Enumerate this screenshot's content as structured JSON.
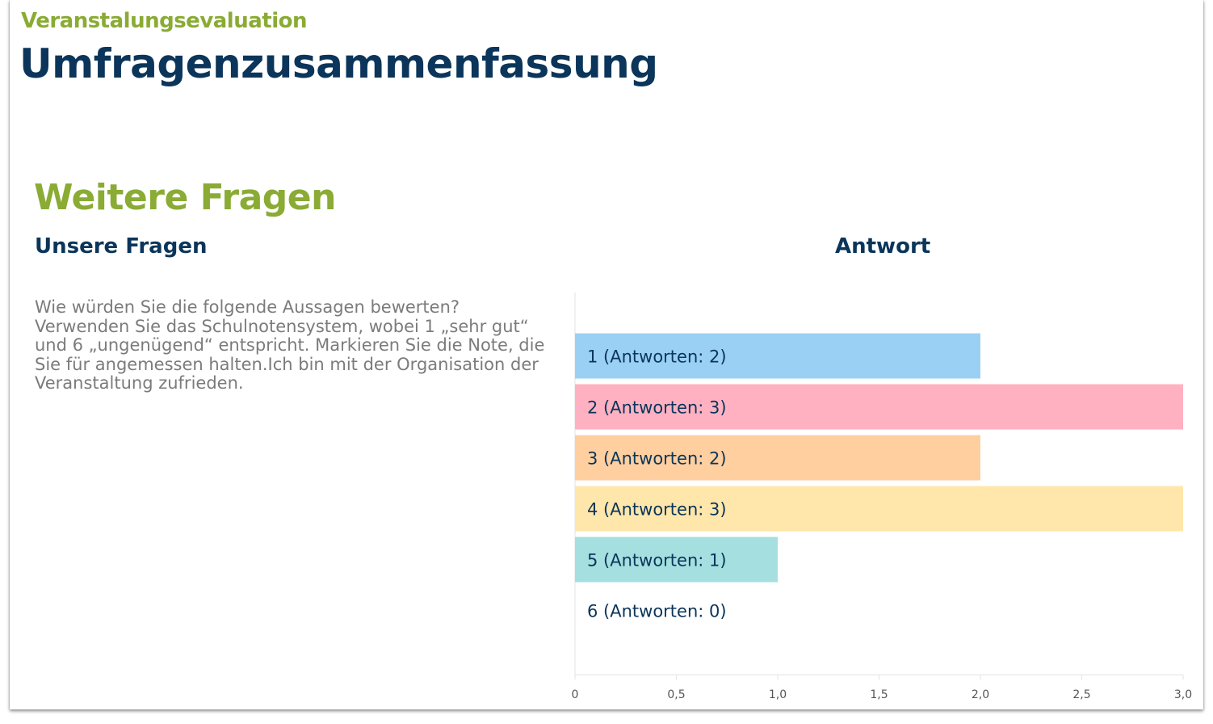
{
  "header": {
    "eyebrow": "Veranstalungsevaluation",
    "title": "Umfragenzusammenfassung"
  },
  "section": {
    "title": "Weitere Fragen",
    "left_heading": "Unsere Fragen",
    "right_heading": "Antwort",
    "question": "Wie würden Sie die folgende Aussagen bewerten? Verwenden Sie das Schulnotensystem, wobei 1 „sehr gut“ und 6 „ungenügend“ entspricht. Markieren Sie die Note, die Sie für angemessen halten.Ich bin mit der Organisation der Veranstaltung zufrieden."
  },
  "chart_data": {
    "type": "bar",
    "orientation": "horizontal",
    "categories": [
      "1",
      "2",
      "3",
      "4",
      "5",
      "6"
    ],
    "values": [
      2,
      3,
      2,
      3,
      1,
      0
    ],
    "labels": [
      "1 (Antworten: 2)",
      "2 (Antworten: 3)",
      "3 (Antworten: 2)",
      "4 (Antworten: 3)",
      "5 (Antworten: 1)",
      "6 (Antworten: 0)"
    ],
    "colors": [
      "#9bd0f5",
      "#ffb1c1",
      "#ffcf9f",
      "#ffe6aa",
      "#a5dfdf",
      "#cccccc"
    ],
    "xlim": [
      0,
      3
    ],
    "xticks": [
      "0",
      "0,5",
      "1,0",
      "1,5",
      "2,0",
      "2,5",
      "3,0"
    ],
    "grid": false,
    "legend": "none"
  }
}
